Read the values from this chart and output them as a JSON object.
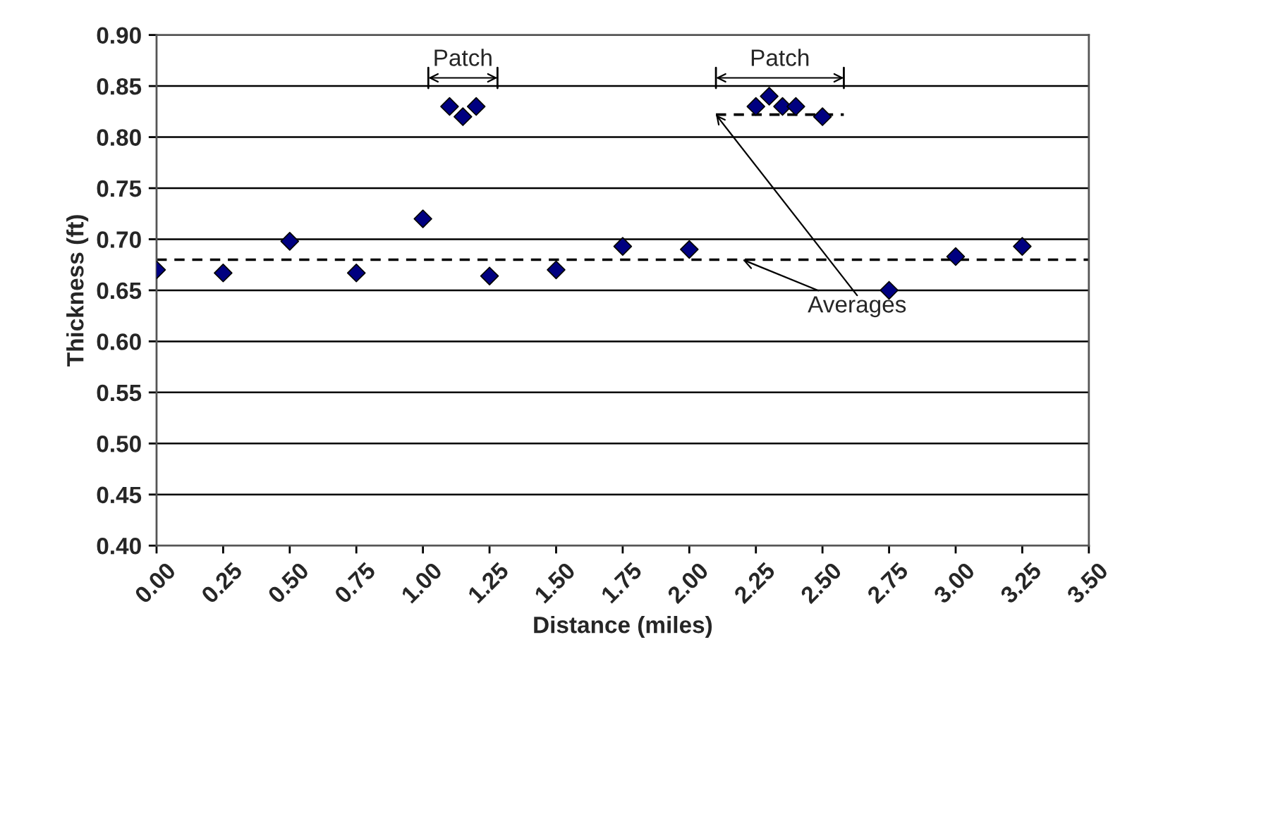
{
  "chart_data": {
    "type": "scatter",
    "xlabel": "Distance (miles)",
    "ylabel": "Thickness (ft)",
    "xlim": [
      0,
      3.5
    ],
    "xticks": [
      {
        "value": 0,
        "label": "0.00"
      },
      {
        "value": 0.25,
        "label": "0.25"
      },
      {
        "value": 0.5,
        "label": "0.50"
      },
      {
        "value": 0.75,
        "label": "0.75"
      },
      {
        "value": 1,
        "label": "1.00"
      },
      {
        "value": 1.25,
        "label": "1.25"
      },
      {
        "value": 1.5,
        "label": "1.50"
      },
      {
        "value": 1.75,
        "label": "1.75"
      },
      {
        "value": 2,
        "label": "2.00"
      },
      {
        "value": 2.25,
        "label": "2.25"
      },
      {
        "value": 2.5,
        "label": "2.50"
      },
      {
        "value": 2.75,
        "label": "2.75"
      },
      {
        "value": 3,
        "label": "3.00"
      },
      {
        "value": 3.25,
        "label": "3.25"
      },
      {
        "value": 3.5,
        "label": "3.50"
      }
    ],
    "ylim": [
      0.4,
      0.9
    ],
    "yticks": [
      {
        "value": 0.4,
        "label": "0.40"
      },
      {
        "value": 0.45,
        "label": "0.45"
      },
      {
        "value": 0.5,
        "label": "0.50"
      },
      {
        "value": 0.55,
        "label": "0.55"
      },
      {
        "value": 0.6,
        "label": "0.60"
      },
      {
        "value": 0.65,
        "label": "0.65"
      },
      {
        "value": 0.7,
        "label": "0.70"
      },
      {
        "value": 0.75,
        "label": "0.75"
      },
      {
        "value": 0.8,
        "label": "0.80"
      },
      {
        "value": 0.85,
        "label": "0.85"
      },
      {
        "value": 0.9,
        "label": "0.90"
      }
    ],
    "grid": "y",
    "marker": "diamond",
    "series": [
      {
        "color": "#000080",
        "x": [
          0,
          0.25,
          0.5,
          0.75,
          1.0,
          1.1,
          1.15,
          1.2,
          1.25,
          1.5,
          1.75,
          2.0,
          2.25,
          2.3,
          2.35,
          2.4,
          2.5,
          2.75,
          3.0,
          3.25
        ],
        "values": [
          0.67,
          0.667,
          0.698,
          0.667,
          0.72,
          0.83,
          0.82,
          0.83,
          0.664,
          0.67,
          0.693,
          0.69,
          0.83,
          0.84,
          0.83,
          0.83,
          0.82,
          0.65,
          0.683,
          0.693
        ]
      },
      {
        "type": "line",
        "color": "#000000",
        "line_style": "dashed",
        "marker": "none",
        "x": [
          0,
          3.5
        ],
        "values": [
          0.68,
          0.68
        ]
      },
      {
        "type": "line",
        "color": "#000000",
        "line_style": "dashed",
        "marker": "none",
        "x": [
          2.1,
          2.58
        ],
        "values": [
          0.822,
          0.822
        ]
      }
    ],
    "annotations": [
      "Patch",
      "Patch",
      {
        "text": "Averages",
        "x": 2.2,
        "y": 0.68
      }
    ]
  }
}
